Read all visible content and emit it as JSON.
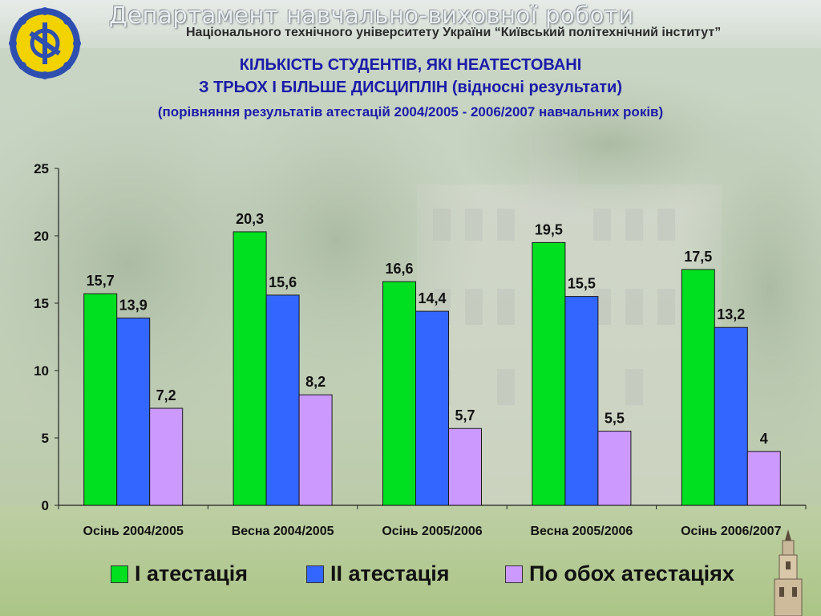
{
  "header": {
    "department": "Департамент навчально-виховної роботи",
    "university": "Національного технічного університету України “Київський політехнічний інститут”"
  },
  "title": {
    "line1": "КІЛЬКІСТЬ СТУДЕНТІВ, ЯКІ НЕАТЕСТОВАНІ",
    "line2": "З ТРЬОХ І БІЛЬШЕ ДИСЦИПЛІН (відносні результати)",
    "line3": "(порівняння результатів атестацій 2004/2005 - 2006/2007 навчальних років)"
  },
  "chart_data": {
    "type": "bar",
    "title": "КІЛЬКІСТЬ СТУДЕНТІВ, ЯКІ НЕАТЕСТОВАНІ З ТРЬОХ І БІЛЬШЕ ДИСЦИПЛІН (відносні результати)",
    "subtitle": "(порівняння результатів атестацій 2004/2005 - 2006/2007 навчальних років)",
    "categories": [
      "Осінь 2004/2005",
      "Весна 2004/2005",
      "Осінь 2005/2006",
      "Весна 2005/2006",
      "Осінь 2006/2007"
    ],
    "series": [
      {
        "name": "І атестація",
        "color": "#00e020",
        "values": [
          15.7,
          20.3,
          16.6,
          19.5,
          17.5
        ],
        "labels": [
          "15,7",
          "20,3",
          "16,6",
          "19,5",
          "17,5"
        ]
      },
      {
        "name": "ІІ атестація",
        "color": "#3366ff",
        "values": [
          13.9,
          15.6,
          14.4,
          15.5,
          13.2
        ],
        "labels": [
          "13,9",
          "15,6",
          "14,4",
          "15,5",
          "13,2"
        ]
      },
      {
        "name": "По обох атестаціях",
        "color": "#cc99ff",
        "values": [
          7.2,
          8.2,
          5.7,
          5.5,
          4
        ],
        "labels": [
          "7,2",
          "8,2",
          "5,7",
          "5,5",
          "4"
        ]
      }
    ],
    "ylim": [
      0,
      25
    ],
    "yticks": [
      0,
      5,
      10,
      15,
      20,
      25
    ],
    "ytick_labels": [
      "0",
      "5",
      "10",
      "15",
      "20",
      "25"
    ],
    "xlabel": "",
    "ylabel": "",
    "grid": false,
    "legend_position": "bottom"
  }
}
